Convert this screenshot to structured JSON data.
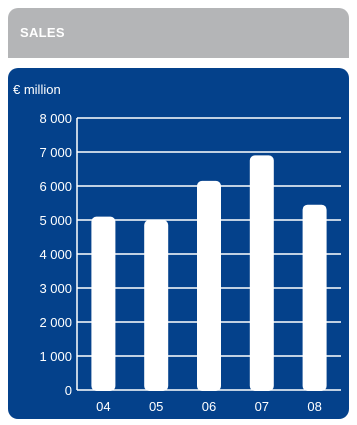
{
  "header": {
    "title": "SALES"
  },
  "chart_data": {
    "type": "bar",
    "ylabel": "€ million",
    "categories": [
      "04",
      "05",
      "06",
      "07",
      "08"
    ],
    "values": [
      5100,
      5000,
      6150,
      6900,
      5450
    ],
    "ylim": [
      0,
      8000
    ],
    "yticks": [
      0,
      1000,
      2000,
      3000,
      4000,
      5000,
      6000,
      7000,
      8000
    ],
    "ytick_labels": [
      "0",
      "1 000",
      "2 000",
      "3 000",
      "4 000",
      "5 000",
      "6 000",
      "7 000",
      "8 000"
    ],
    "grid": true,
    "colors": {
      "panel": "#04418b",
      "bar": "#ffffff",
      "grid": "#ffffff",
      "text": "#ffffff",
      "header": "#b4b5b7"
    }
  }
}
